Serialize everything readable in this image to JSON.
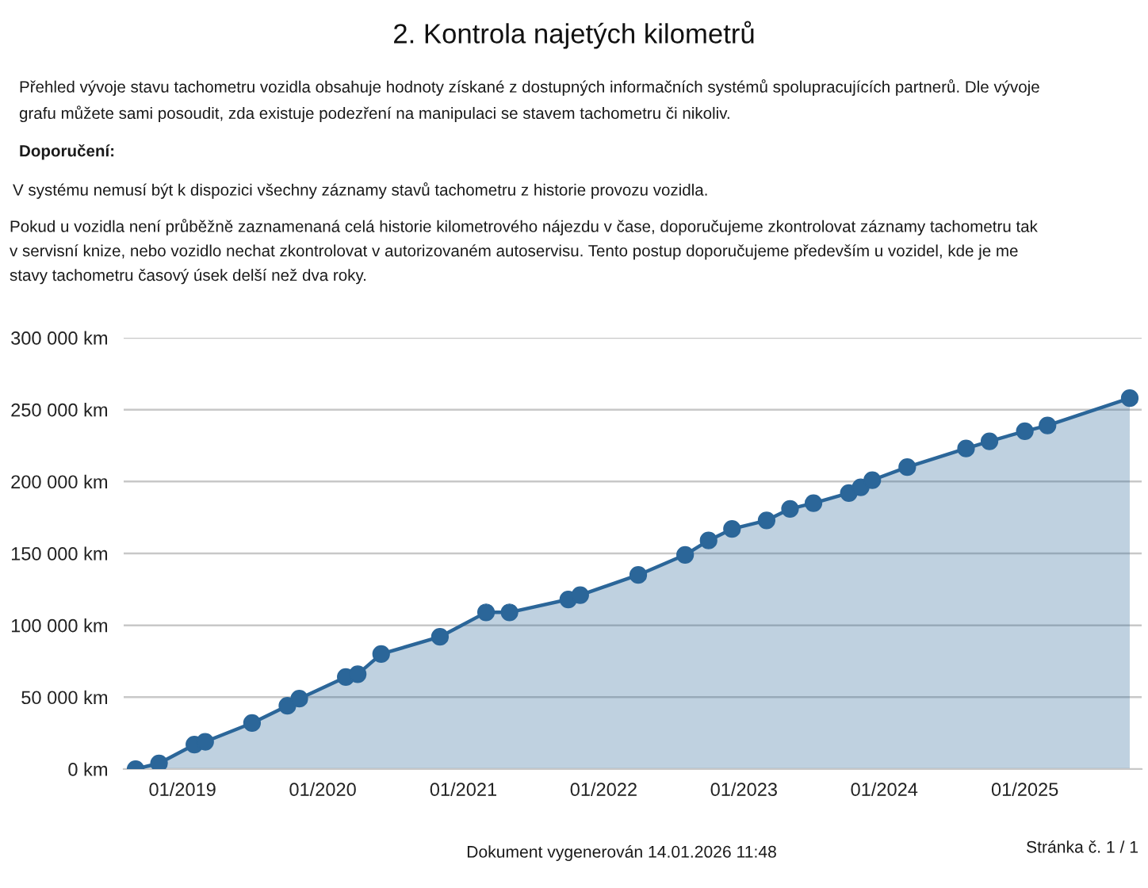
{
  "chart_data": {
    "type": "area",
    "title": "2. Kontrola najetých kilometrů",
    "annotations": [
      "Přehled vývoje stavu tachometru vozidla obsahuje hodnoty získané z dostupných informačních systémů spolupracujících partnerů. Dle vývoje\ngrafu můžete sami posoudit, zda existuje podezření na manipulaci se stavem tachometru či nikoliv.",
      "Doporučení:",
      "V systému nemusí být k dispozici všechny záznamy stavů tachometru z historie provozu vozidla.",
      "Pokud u vozidla není průběžně zaznamenaná celá historie kilometrového nájezdu v čase, doporučujeme zkontrolovat záznamy tachometru tak\nv servisní knize, nebo vozidlo nechat zkontrolovat v autorizovaném autoservisu. Tento postup doporučujeme především u vozidel, kde je me\nstavy tachometru časový úsek delší než dva roky.",
      "Dokument vygenerován 14.01.2026 11:48",
      "Stránka č. 1 / 1"
    ],
    "x": [
      "2018-09",
      "2018-11",
      "2019-02",
      "2019-03",
      "2019-07",
      "2019-10",
      "2019-11",
      "2020-03",
      "2020-04",
      "2020-06",
      "2020-11",
      "2021-03",
      "2021-05",
      "2021-10",
      "2021-11",
      "2022-04",
      "2022-08",
      "2022-10",
      "2022-12",
      "2023-03",
      "2023-05",
      "2023-07",
      "2023-10",
      "2023-11",
      "2023-12",
      "2024-03",
      "2024-08",
      "2024-10",
      "2025-01",
      "2025-03",
      "2025-10"
    ],
    "series": [
      {
        "color": "#2b6699",
        "values": [
          0,
          4000,
          17000,
          19000,
          32000,
          44000,
          49000,
          64000,
          66000,
          80000,
          92000,
          109000,
          109000,
          118000,
          121000,
          135000,
          149000,
          159000,
          167000,
          173000,
          181000,
          185000,
          192000,
          196000,
          201000,
          210000,
          223000,
          228000,
          235000,
          239000,
          258000
        ]
      }
    ],
    "xlim": [
      "2018-08",
      "2025-11"
    ],
    "xticks": [
      {
        "value": "2019-01",
        "label": "01/2019"
      },
      {
        "value": "2020-01",
        "label": "01/2020"
      },
      {
        "value": "2021-01",
        "label": "01/2021"
      },
      {
        "value": "2022-01",
        "label": "01/2022"
      },
      {
        "value": "2023-01",
        "label": "01/2023"
      },
      {
        "value": "2024-01",
        "label": "01/2024"
      },
      {
        "value": "2025-01",
        "label": "01/2025"
      }
    ],
    "ylim": [
      0,
      300000
    ],
    "yticks": [
      {
        "value": 0,
        "label": "0 km"
      },
      {
        "value": 50000,
        "label": "50 000 km"
      },
      {
        "value": 100000,
        "label": "100 000 km"
      },
      {
        "value": 150000,
        "label": "150 000 km"
      },
      {
        "value": 200000,
        "label": "200 000 km"
      },
      {
        "value": 250000,
        "label": "250 000 km"
      },
      {
        "value": 300000,
        "label": "300 000 km"
      }
    ],
    "grid": "y",
    "marker": "circle",
    "line_style": "solid"
  }
}
